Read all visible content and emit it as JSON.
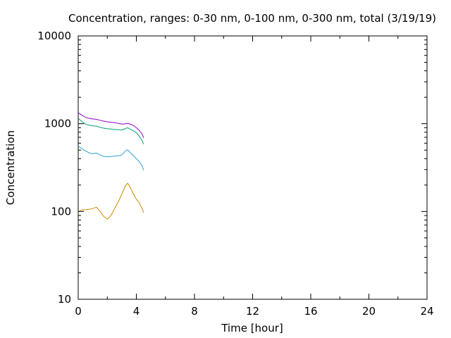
{
  "chart_data": {
    "type": "line",
    "title": "Concentration, ranges: 0-30 nm, 0-100 nm, 0-300 nm, total (3/19/19)",
    "xlabel": "Time [hour]",
    "ylabel": "Concentration",
    "xlim": [
      0,
      24
    ],
    "ylim": [
      10,
      10000
    ],
    "yscale": "log",
    "grid": false,
    "xticks": [
      0,
      4,
      8,
      12,
      16,
      20,
      24
    ],
    "xtick_labels": [
      "0",
      "4",
      "8",
      "12",
      "16",
      "20",
      "24"
    ],
    "yticks": [
      10,
      100,
      1000,
      10000
    ],
    "ytick_labels": [
      "10",
      "100",
      "1000",
      "10000"
    ],
    "series": [
      {
        "color": "#cc8800",
        "x": [
          0,
          0.25,
          0.5,
          0.75,
          1.0,
          1.25,
          1.5,
          1.75,
          2.0,
          2.25,
          2.5,
          2.75,
          3.0,
          3.25,
          3.4,
          3.6,
          3.8,
          4.0,
          4.2,
          4.4,
          4.5
        ],
        "y": [
          101,
          104,
          105,
          106,
          108,
          112,
          100,
          88,
          82,
          90,
          108,
          128,
          158,
          196,
          210,
          185,
          158,
          138,
          126,
          107,
          97
        ]
      },
      {
        "color": "#2aa3cc",
        "x": [
          0,
          0.25,
          0.5,
          0.75,
          1.0,
          1.25,
          1.5,
          1.75,
          2.0,
          2.25,
          2.5,
          2.75,
          3.0,
          3.25,
          3.4,
          3.6,
          3.8,
          4.0,
          4.2,
          4.4,
          4.5
        ],
        "y": [
          560,
          520,
          490,
          465,
          455,
          465,
          440,
          425,
          420,
          422,
          428,
          432,
          440,
          490,
          505,
          465,
          430,
          400,
          370,
          330,
          295
        ]
      },
      {
        "color": "#009e73",
        "x": [
          0,
          0.25,
          0.5,
          0.75,
          1.0,
          1.25,
          1.5,
          1.75,
          2.0,
          2.25,
          2.5,
          2.75,
          3.0,
          3.25,
          3.4,
          3.6,
          3.8,
          4.0,
          4.2,
          4.4,
          4.5
        ],
        "y": [
          1150,
          1060,
          990,
          960,
          945,
          940,
          910,
          890,
          875,
          870,
          860,
          855,
          850,
          880,
          900,
          860,
          830,
          790,
          720,
          640,
          585
        ]
      },
      {
        "color": "#9400d3",
        "x": [
          0,
          0.25,
          0.5,
          0.75,
          1.0,
          1.25,
          1.5,
          1.75,
          2.0,
          2.25,
          2.5,
          2.75,
          3.0,
          3.25,
          3.4,
          3.6,
          3.8,
          4.0,
          4.2,
          4.4,
          4.5
        ],
        "y": [
          1330,
          1250,
          1180,
          1150,
          1130,
          1120,
          1095,
          1070,
          1050,
          1040,
          1025,
          1010,
          990,
          1000,
          1010,
          985,
          950,
          900,
          840,
          760,
          690
        ]
      }
    ]
  }
}
